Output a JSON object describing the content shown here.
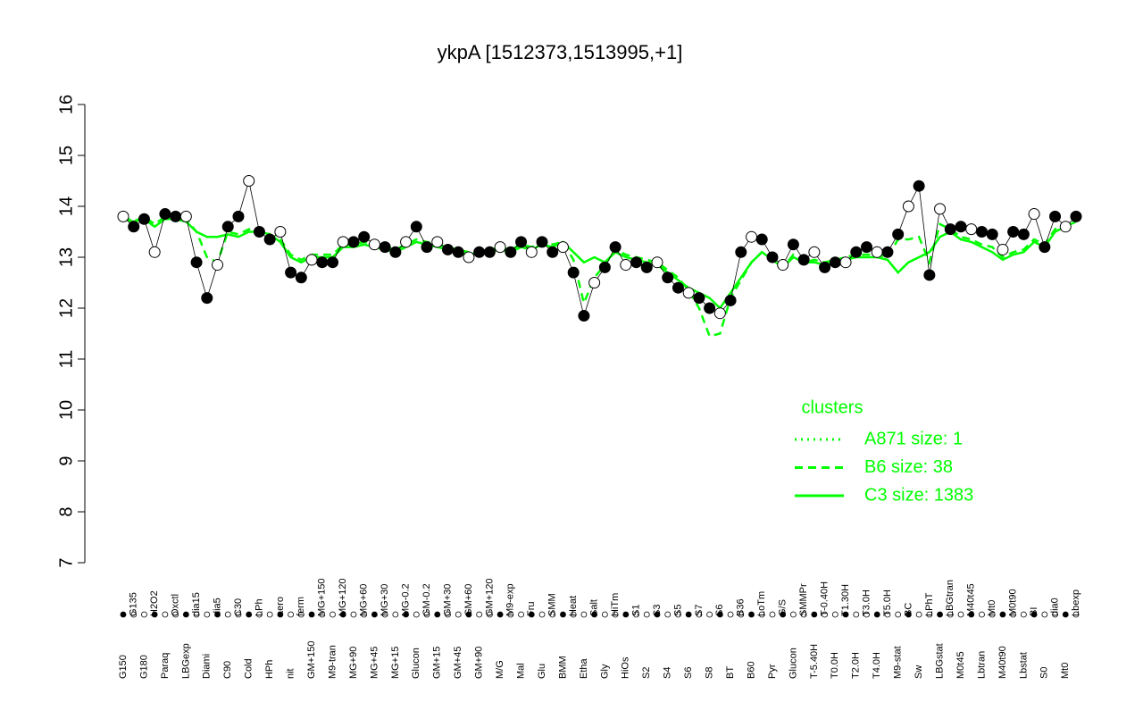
{
  "chart_data": {
    "type": "line",
    "title": "ykpA [1512373,1513995,+1]",
    "categories": [
      "G150",
      "G135",
      "G180",
      "H2O2",
      "Paraq",
      "Oxctl",
      "LBGexp",
      "dia15",
      "Diami",
      "dia5",
      "C90",
      "C30",
      "Cold",
      "LPh",
      "HPh",
      "aero",
      "nit",
      "ferm",
      "GM+150",
      "MG+150",
      "M9-tran",
      "MG+120",
      "MG+90",
      "MG+60",
      "MG+45",
      "MG+30",
      "MG+15",
      "MG-0.2",
      "Glucon",
      "GM-0.2",
      "GM+15",
      "GM+30",
      "GM+45",
      "GM+60",
      "GM+90",
      "GM+120",
      "M/G",
      "M9-exp",
      "Mal",
      "Fru",
      "Glu",
      "SMM",
      "BMM",
      "Heat",
      "Etha",
      "Salt",
      "Gly",
      "HiTm",
      "HiOs",
      "S1",
      "S2",
      "S3",
      "S4",
      "S5",
      "S6",
      "S7",
      "S8",
      "S6",
      "BT",
      "B36",
      "B60",
      "LoTm",
      "Pyr",
      "G/S",
      "Glucon",
      "SMMPr",
      "T-5.40H",
      "T-0.40H",
      "T0.0H",
      "T1.30H",
      "T2.0H",
      "T3.0H",
      "T4.0H",
      "T5.0H",
      "M9-stat",
      "BC",
      "Sw",
      "LPhT",
      "LBGstat",
      "LBGtran",
      "M0t45",
      "M40t45",
      "Lbtran",
      "Mt0",
      "M40t90",
      "M0t90",
      "Lbstat",
      "BI",
      "S0",
      "dia0",
      "Mt0",
      "Lbexp"
    ],
    "values": [
      13.8,
      13.6,
      13.75,
      13.1,
      13.85,
      13.8,
      13.8,
      12.9,
      12.2,
      12.85,
      13.6,
      13.8,
      14.5,
      13.5,
      13.35,
      13.5,
      12.7,
      12.6,
      12.95,
      12.9,
      12.9,
      13.3,
      13.3,
      13.4,
      13.25,
      13.2,
      13.1,
      13.3,
      13.6,
      13.2,
      13.3,
      13.15,
      13.1,
      13.0,
      13.1,
      13.1,
      13.2,
      13.1,
      13.3,
      13.1,
      13.3,
      13.1,
      13.2,
      12.7,
      11.85,
      12.5,
      12.8,
      13.2,
      12.85,
      12.9,
      12.8,
      12.9,
      12.6,
      12.4,
      12.3,
      12.2,
      12.0,
      11.9,
      12.15,
      13.1,
      13.4,
      13.35,
      13.0,
      12.85,
      13.25,
      12.95,
      13.1,
      12.8,
      12.9,
      12.9,
      13.1,
      13.2,
      13.1,
      13.1,
      13.45,
      14.0,
      14.4,
      12.65,
      13.95,
      13.55,
      13.6,
      13.55,
      13.5,
      13.45,
      13.15,
      13.5,
      13.45,
      13.85,
      13.2,
      13.8,
      13.6,
      13.8
    ],
    "point_color": "#000000",
    "series": [
      {
        "name": "A871 size: 1",
        "color": "#00ff00",
        "style": "dotted",
        "values": [
          null,
          null,
          null,
          null,
          null,
          null,
          null,
          null,
          null,
          null,
          null,
          null,
          null,
          null,
          null,
          null,
          null,
          null,
          null,
          null,
          null,
          null,
          null,
          null,
          null,
          null,
          null,
          null,
          null,
          null,
          null,
          null,
          null,
          null,
          null,
          null,
          null,
          null,
          null,
          null,
          null,
          null,
          null,
          null,
          null,
          null,
          null,
          null,
          null,
          null,
          null,
          null,
          null,
          null,
          null,
          null,
          null,
          null,
          null,
          null,
          null,
          null,
          null,
          null,
          null,
          null,
          null,
          null,
          null,
          null,
          null,
          null,
          null,
          null,
          null,
          null,
          null,
          null,
          null,
          null,
          null,
          null,
          null,
          null,
          null,
          null,
          null,
          null,
          null,
          null,
          null,
          null
        ]
      },
      {
        "name": "B6 size: 38",
        "color": "#00ff00",
        "style": "dashed",
        "values": [
          13.8,
          13.7,
          13.8,
          13.65,
          13.8,
          13.8,
          13.75,
          13.5,
          13.0,
          12.9,
          13.5,
          13.45,
          13.55,
          13.55,
          13.45,
          13.35,
          13.05,
          12.95,
          13.05,
          13.05,
          13.05,
          13.25,
          13.25,
          13.3,
          13.25,
          13.2,
          13.15,
          13.25,
          13.35,
          13.3,
          13.25,
          13.2,
          13.15,
          13.1,
          13.15,
          13.15,
          13.2,
          13.15,
          13.25,
          13.2,
          13.3,
          13.25,
          13.3,
          12.95,
          12.1,
          12.6,
          12.85,
          13.15,
          13.05,
          13.0,
          12.95,
          12.9,
          12.75,
          12.6,
          12.35,
          12.0,
          11.45,
          11.5,
          12.2,
          12.55,
          12.9,
          13.1,
          12.95,
          12.8,
          13.05,
          12.9,
          12.95,
          12.9,
          12.95,
          13.0,
          13.05,
          13.05,
          13.05,
          13.0,
          13.35,
          13.35,
          13.4,
          12.9,
          13.65,
          13.55,
          13.4,
          13.35,
          13.25,
          13.2,
          13.0,
          13.1,
          13.15,
          13.35,
          13.25,
          13.55,
          13.65,
          13.75
        ]
      },
      {
        "name": "C3 size: 1383",
        "color": "#00ff00",
        "style": "solid",
        "values": [
          13.75,
          13.7,
          13.75,
          13.6,
          13.75,
          13.75,
          13.7,
          13.5,
          13.4,
          13.4,
          13.45,
          13.4,
          13.5,
          13.5,
          13.45,
          13.3,
          13.0,
          12.9,
          13.0,
          13.0,
          13.0,
          13.2,
          13.2,
          13.25,
          13.2,
          13.15,
          13.1,
          13.2,
          13.3,
          13.25,
          13.2,
          13.15,
          13.1,
          13.05,
          13.1,
          13.1,
          13.15,
          13.1,
          13.2,
          13.15,
          13.25,
          13.2,
          13.3,
          13.1,
          12.9,
          13.0,
          12.9,
          13.1,
          13.0,
          12.95,
          12.9,
          12.85,
          12.7,
          12.55,
          12.4,
          12.3,
          12.2,
          12.0,
          12.3,
          12.6,
          12.9,
          13.1,
          12.95,
          12.8,
          13.0,
          12.9,
          12.9,
          12.85,
          12.9,
          12.95,
          13.0,
          13.0,
          13.0,
          12.95,
          12.7,
          12.9,
          13.0,
          13.1,
          13.4,
          13.5,
          13.35,
          13.3,
          13.2,
          13.1,
          12.95,
          13.05,
          13.1,
          13.3,
          13.2,
          13.5,
          13.6,
          13.7
        ]
      }
    ],
    "legend_title": "clusters",
    "legend_position": "right",
    "ylim": [
      7,
      16
    ],
    "yticks": [
      7,
      8,
      9,
      10,
      11,
      12,
      13,
      14,
      15,
      16
    ]
  }
}
